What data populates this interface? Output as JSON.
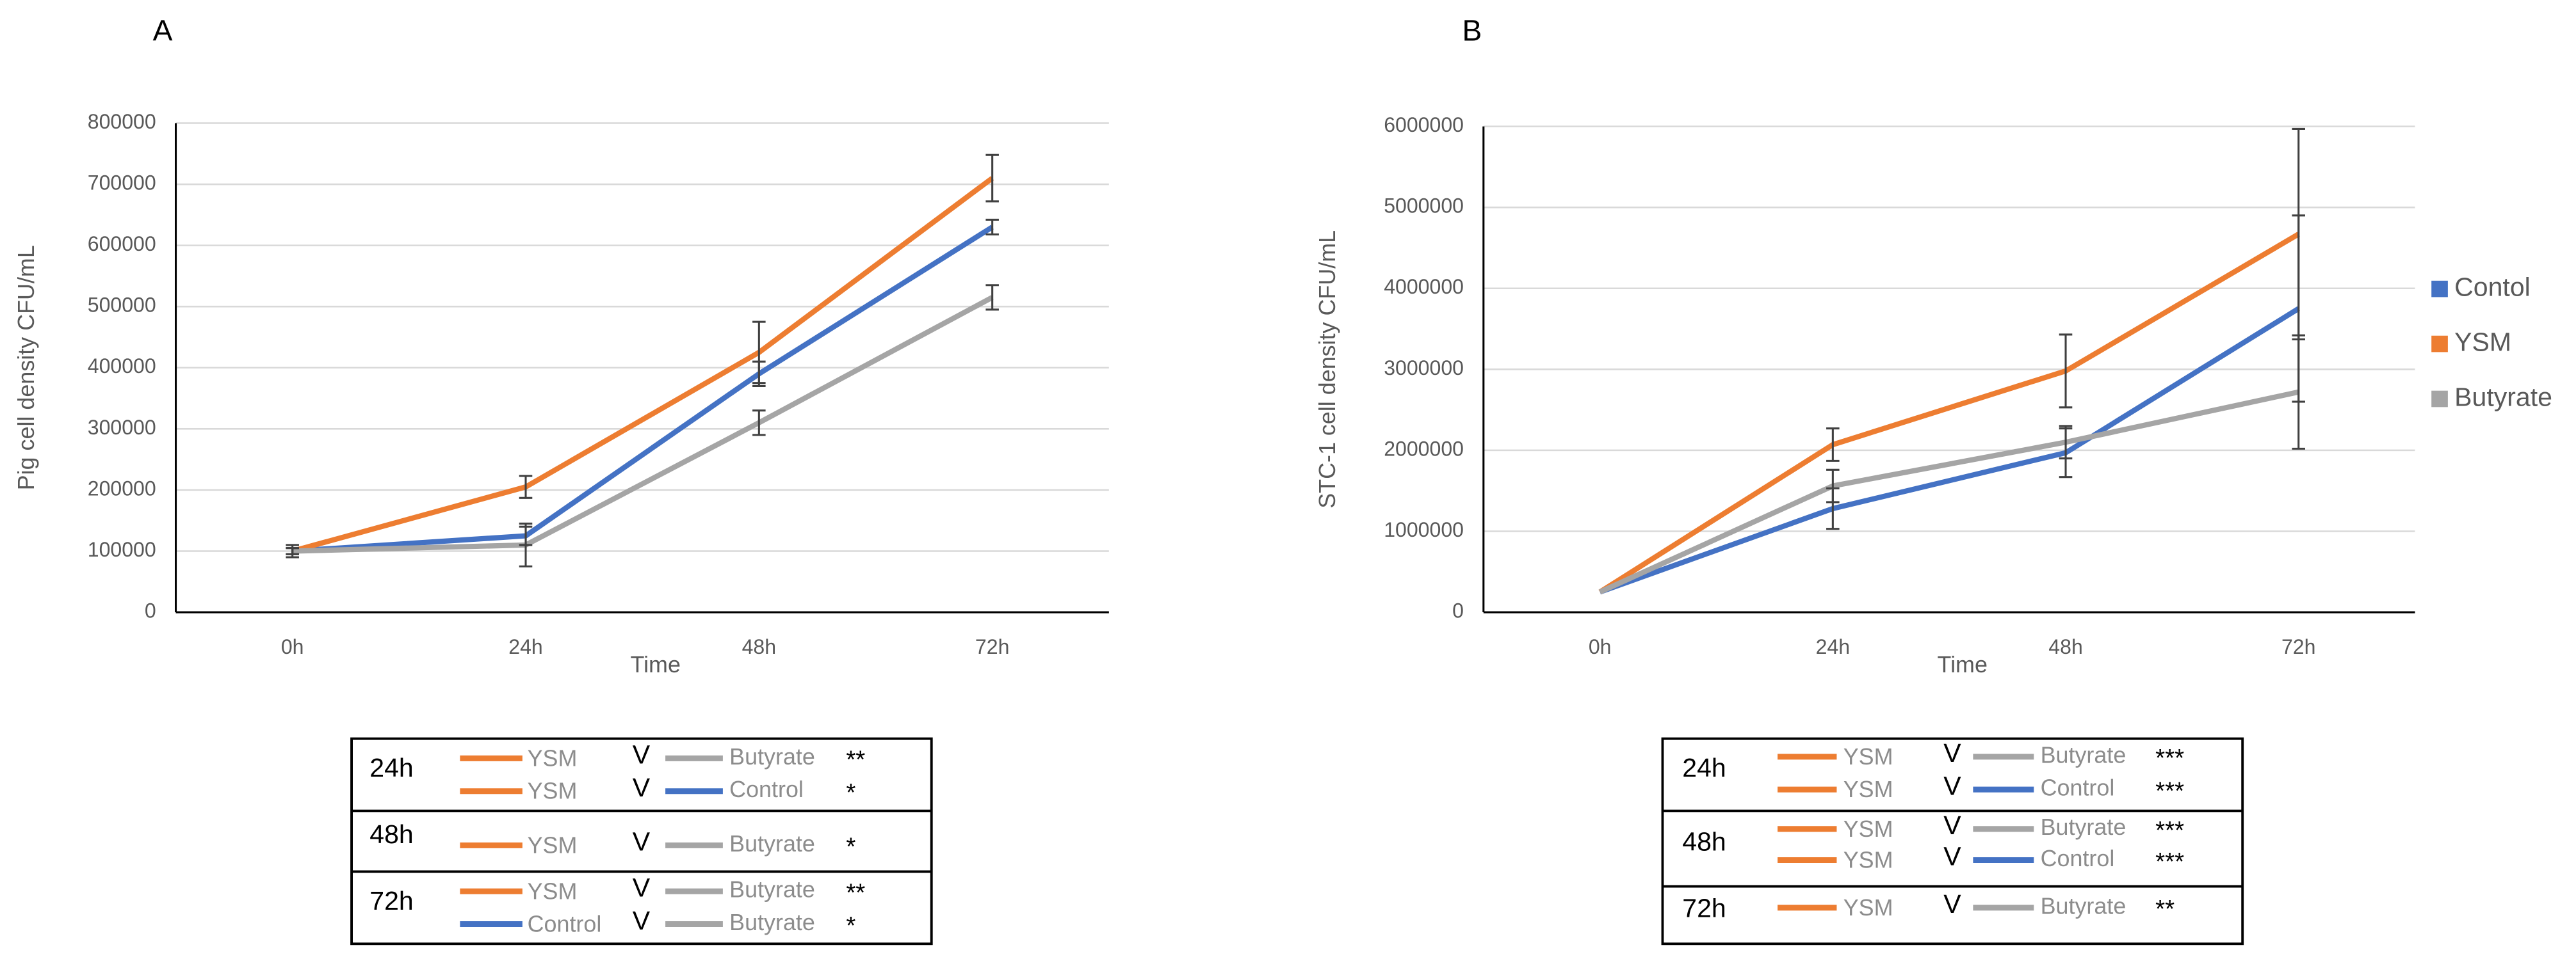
{
  "chart_data": [
    {
      "type": "line",
      "panel_label": "A",
      "x_label": "Time",
      "y_label": "Pig cell density CFU/mL",
      "categories": [
        "0h",
        "24h",
        "48h",
        "72h"
      ],
      "ylim": [
        0,
        800000
      ],
      "yticks": [
        0,
        100000,
        200000,
        300000,
        400000,
        500000,
        600000,
        700000,
        800000
      ],
      "grid": true,
      "legend": false,
      "series": [
        {
          "name": "Control",
          "color": "#4472c4",
          "values": [
            100000,
            125000,
            390000,
            630000
          ],
          "errors": [
            5000,
            15000,
            20000,
            12000
          ]
        },
        {
          "name": "YSM",
          "color": "#ed7d31",
          "values": [
            100000,
            205000,
            425000,
            710000
          ],
          "errors": [
            5000,
            18000,
            50000,
            38000
          ]
        },
        {
          "name": "Butyrate",
          "color": "#a5a5a5",
          "values": [
            100000,
            110000,
            310000,
            515000
          ],
          "errors": [
            10000,
            35000,
            20000,
            20000
          ]
        }
      ],
      "significance": [
        {
          "time": "24h",
          "rows": [
            {
              "a": "YSM",
              "a_color": "#ed7d31",
              "v": "V",
              "b": "Butyrate",
              "b_color": "#a5a5a5",
              "stars": "**"
            },
            {
              "a": "YSM",
              "a_color": "#ed7d31",
              "v": "V",
              "b": "Control",
              "b_color": "#4472c4",
              "stars": "*"
            }
          ]
        },
        {
          "time": "48h",
          "rows": [
            {
              "a": "YSM",
              "a_color": "#ed7d31",
              "v": "V",
              "b": "Butyrate",
              "b_color": "#a5a5a5",
              "stars": "*"
            }
          ]
        },
        {
          "time": "72h",
          "rows": [
            {
              "a": "YSM",
              "a_color": "#ed7d31",
              "v": "V",
              "b": "Butyrate",
              "b_color": "#a5a5a5",
              "stars": "**"
            },
            {
              "a": "Control",
              "a_color": "#4472c4",
              "v": "V",
              "b": "Butyrate",
              "b_color": "#a5a5a5",
              "stars": "*"
            }
          ]
        }
      ]
    },
    {
      "type": "line",
      "panel_label": "B",
      "x_label": "Time",
      "y_label": "STC-1 cell density CFU/mL",
      "categories": [
        "0h",
        "24h",
        "48h",
        "72h"
      ],
      "ylim": [
        0,
        6000000
      ],
      "yticks": [
        0,
        1000000,
        2000000,
        3000000,
        4000000,
        5000000,
        6000000
      ],
      "grid": true,
      "legend": "right",
      "series": [
        {
          "name": "Contol",
          "color": "#4472c4",
          "values": [
            250000,
            1280000,
            1970000,
            3750000
          ],
          "errors": [
            0,
            250000,
            300000,
            1150000
          ]
        },
        {
          "name": "YSM",
          "color": "#ed7d31",
          "values": [
            250000,
            2070000,
            2980000,
            4670000
          ],
          "errors": [
            0,
            200000,
            450000,
            1300000
          ]
        },
        {
          "name": "Butyrate",
          "color": "#a5a5a5",
          "values": [
            250000,
            1560000,
            2100000,
            2720000
          ],
          "errors": [
            0,
            200000,
            200000,
            700000
          ]
        }
      ],
      "significance": [
        {
          "time": "24h",
          "rows": [
            {
              "a": "YSM",
              "a_color": "#ed7d31",
              "v": "V",
              "b": "Butyrate",
              "b_color": "#a5a5a5",
              "stars": "***"
            },
            {
              "a": "YSM",
              "a_color": "#ed7d31",
              "v": "V",
              "b": "Control",
              "b_color": "#4472c4",
              "stars": "***"
            }
          ]
        },
        {
          "time": "48h",
          "rows": [
            {
              "a": "YSM",
              "a_color": "#ed7d31",
              "v": "V",
              "b": "Butyrate",
              "b_color": "#a5a5a5",
              "stars": "***"
            },
            {
              "a": "YSM",
              "a_color": "#ed7d31",
              "v": "V",
              "b": "Control",
              "b_color": "#4472c4",
              "stars": "***"
            }
          ]
        },
        {
          "time": "72h",
          "rows": [
            {
              "a": "YSM",
              "a_color": "#ed7d31",
              "v": "V",
              "b": "Butyrate",
              "b_color": "#a5a5a5",
              "stars": "**"
            }
          ]
        }
      ]
    }
  ]
}
